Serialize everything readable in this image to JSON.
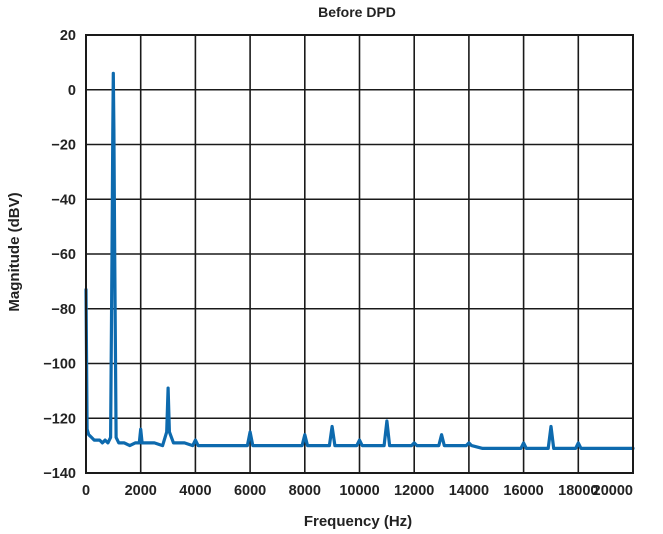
{
  "chart_data": {
    "type": "line",
    "title": "Before DPD",
    "xlabel": "Frequency (Hz)",
    "ylabel": "Magnitude (dBV)",
    "xlim": [
      0,
      20000
    ],
    "ylim": [
      -140,
      20
    ],
    "x_ticks": [
      "0",
      "2000",
      "4000",
      "6000",
      "8000",
      "10000",
      "12000",
      "14000",
      "16000",
      "18000",
      "20000"
    ],
    "y_ticks": [
      "20",
      "0",
      "−20",
      "−40",
      "−60",
      "−80",
      "−100",
      "−120",
      "−140"
    ],
    "grid": true,
    "colors": {
      "series": "#0d6aae",
      "grid": "#1a1a1a"
    },
    "series": [
      {
        "x": [
          0,
          40,
          100,
          200,
          300,
          400,
          500,
          600,
          700,
          800,
          900,
          950,
          980,
          1000,
          1020,
          1050,
          1100,
          1200,
          1400,
          1600,
          1800,
          1950,
          2000,
          2050,
          2200,
          2500,
          2800,
          2950,
          3000,
          3050,
          3200,
          3600,
          3900,
          4000,
          4100,
          4500,
          5000,
          5500,
          5900,
          6000,
          6100,
          6500,
          7000,
          7500,
          7900,
          8000,
          8100,
          8500,
          8900,
          9000,
          9100,
          9500,
          9900,
          10000,
          10100,
          10500,
          10900,
          11000,
          11100,
          11500,
          11900,
          12000,
          12100,
          12500,
          12900,
          13000,
          13100,
          13500,
          13900,
          14000,
          14100,
          14500,
          15000,
          15500,
          15900,
          16000,
          16100,
          16500,
          16900,
          17000,
          17100,
          17500,
          17900,
          18000,
          18100,
          18500,
          19000,
          19500,
          19900,
          20000
        ],
        "y": [
          -73,
          -124,
          -126,
          -127,
          -128,
          -128,
          -128,
          -129,
          -128,
          -129,
          -127,
          -60,
          -15,
          6,
          -15,
          -60,
          -127,
          -129,
          -129,
          -130,
          -129,
          -129,
          -124,
          -129,
          -129,
          -129,
          -130,
          -125,
          -109,
          -125,
          -129,
          -129,
          -130,
          -128,
          -130,
          -130,
          -130,
          -130,
          -130,
          -125,
          -130,
          -130,
          -130,
          -130,
          -130,
          -126,
          -130,
          -130,
          -130,
          -123,
          -130,
          -130,
          -130,
          -128,
          -130,
          -130,
          -130,
          -121,
          -130,
          -130,
          -130,
          -129,
          -130,
          -130,
          -130,
          -126,
          -130,
          -130,
          -130,
          -129,
          -130,
          -131,
          -131,
          -131,
          -131,
          -129,
          -131,
          -131,
          -131,
          -123,
          -131,
          -131,
          -131,
          -129,
          -131,
          -131,
          -131,
          -131,
          -131,
          -131
        ]
      }
    ]
  }
}
